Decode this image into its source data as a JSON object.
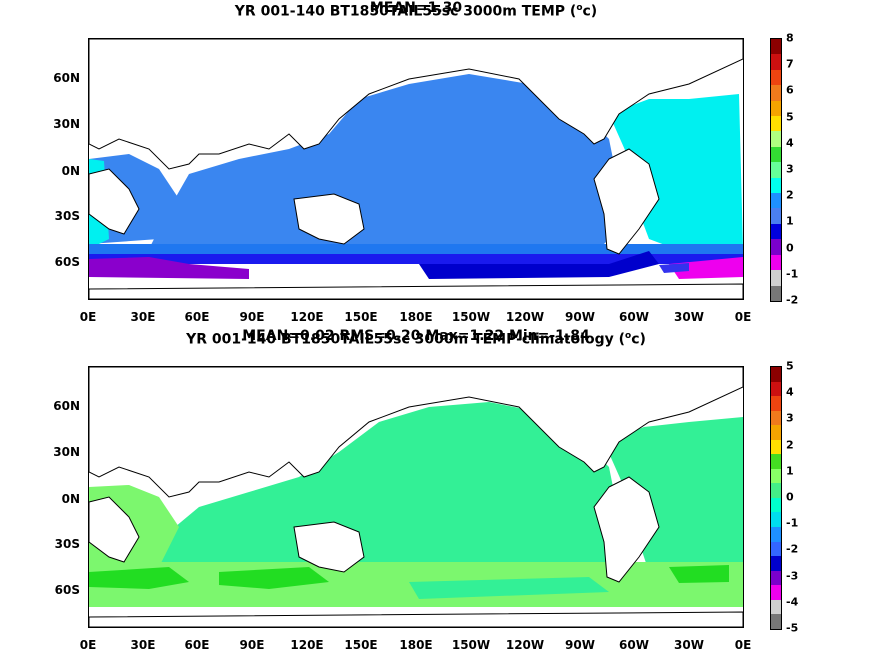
{
  "panels": [
    {
      "title_line1": "YR 001-140 BT1850TAIL55sc 3000m TEMP (",
      "title_line1_sup": "o",
      "title_line1_end": "c)",
      "title_line2": "MEAN=1.30",
      "colorbar": {
        "labels": [
          "8",
          "7",
          "6",
          "5",
          "4",
          "3",
          "2",
          "1",
          "0",
          "-1",
          "-2"
        ],
        "colors": [
          "#8b0000",
          "#cc1010",
          "#ee4410",
          "#f07a1c",
          "#f5a400",
          "#ffe000",
          "#b0ff80",
          "#33dd33",
          "#66ff99",
          "#00ffee",
          "#1e90ff",
          "#4a7ff0",
          "#0000dd",
          "#7a00cc",
          "#ee00ee",
          "#d0d0d0",
          "#777777"
        ]
      }
    },
    {
      "title_line1": "YR 001-140 BT1850TAIL55sc 3000m TEMP-climatology (",
      "title_line1_sup": "o",
      "title_line1_end": "c)",
      "title_line2": "MEAN=0.02   RMS=0.20   Max=1.22   Min=-1.84",
      "colorbar": {
        "labels": [
          "5",
          "4",
          "3",
          "2",
          "1",
          "0",
          "-1",
          "-2",
          "-3",
          "-4",
          "-5"
        ],
        "colors": [
          "#8b0000",
          "#cc1010",
          "#ee4410",
          "#f07a1c",
          "#f5a400",
          "#ffe000",
          "#44dd22",
          "#88ff66",
          "#44ee88",
          "#00ffcc",
          "#00ddee",
          "#1e90ff",
          "#3366ff",
          "#0000cc",
          "#7a00cc",
          "#ee00ee",
          "#d0d0d0",
          "#777777"
        ]
      }
    }
  ],
  "axes": {
    "x_ticks": [
      "0E",
      "30E",
      "60E",
      "90E",
      "120E",
      "150E",
      "180E",
      "150W",
      "120W",
      "90W",
      "60W",
      "30W",
      "0E"
    ],
    "y_ticks": [
      "60N",
      "30N",
      "0N",
      "30S",
      "60S"
    ],
    "y_values": [
      60,
      30,
      0,
      -30,
      -60
    ],
    "lat_range": [
      -80,
      90
    ],
    "lon_range": [
      0,
      360
    ]
  },
  "chart_data": [
    {
      "type": "heatmap",
      "title": "YR 001-140 BT1850TAIL55sc 3000m TEMP (oc)",
      "subtitle": "MEAN=1.30",
      "colorbar_range": [
        -2,
        8
      ],
      "colorbar_ticks": [
        8,
        7,
        6,
        5,
        4,
        3,
        2,
        1,
        0,
        -1,
        -2
      ],
      "dominant_values": {
        "Pacific": 1.5,
        "Indian": 1.5,
        "North Atlantic": 2.5,
        "Southern Ocean": 0.0,
        "Weddell/Ross": -1.0
      }
    },
    {
      "type": "heatmap",
      "title": "YR 001-140 BT1850TAIL55sc 3000m TEMP-climatology (oc)",
      "subtitle": "MEAN=0.02   RMS=0.20   Max=1.22   Min=-1.84",
      "colorbar_range": [
        -5,
        5
      ],
      "colorbar_ticks": [
        5,
        4,
        3,
        2,
        1,
        0,
        -1,
        -2,
        -3,
        -4,
        -5
      ],
      "dominant_values": {
        "Pacific": 0.0,
        "Indian": 0.3,
        "Southern Ocean": 0.5,
        "Atlantic": 0.2
      }
    }
  ]
}
